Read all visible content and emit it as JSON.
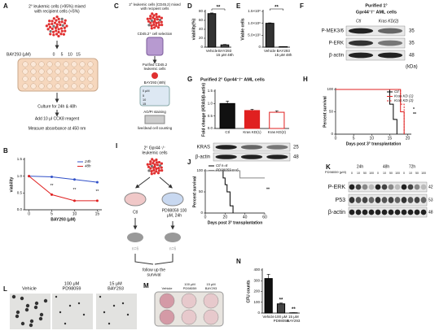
{
  "panels": {
    "A": {
      "label": "A",
      "lines": [
        "2° leukemic cells (>95%) mixed",
        "with recipient cells (<5%)"
      ],
      "dose_label": "BAY293 (μM)",
      "doses": [
        "0",
        "5",
        "10",
        "15"
      ],
      "steps": [
        "Culture for 24h & 48h",
        "Add 10 μl CCK8 reagent",
        "Measure absorbance at 450 nm"
      ]
    },
    "B": {
      "label": "B"
    },
    "C": {
      "label": "C",
      "lines": [
        "2° leukemic cells (CD45.2) mixed",
        "with recipient cells"
      ],
      "steps": [
        "CD45.2⁺ cell selection",
        "Purified CD45.2",
        "leukemic cells",
        "BAY293 (48h)",
        "AO/PI staining",
        "live/dead cell counting"
      ],
      "doses": [
        "0 μM",
        "5",
        "10",
        "15"
      ]
    },
    "D": {
      "label": "D"
    },
    "E": {
      "label": "E"
    },
    "F": {
      "label": "F",
      "title": [
        "Purified 1°",
        "Gpr44⁻/⁻ AML cells"
      ],
      "lanes": [
        "Ctl",
        "Kras KD(2)"
      ],
      "bands": [
        "P-MEK3/6",
        "P-ERK",
        "β-actin"
      ],
      "kda": [
        "35",
        "35",
        "48"
      ],
      "unit": "(kDa)"
    },
    "G": {
      "label": "G",
      "title": "Purified 2° Gpr44⁻/⁻ AML cells",
      "bands": [
        "KRAS",
        "β-actin"
      ],
      "kda": [
        "25",
        "48"
      ]
    },
    "H": {
      "label": "H"
    },
    "I": {
      "label": "I",
      "lines": [
        "2° Gpr44⁻/⁻",
        "leukemic cells"
      ],
      "arms": [
        "Ctl",
        "PD98059 100",
        "μM, 24h"
      ],
      "n": [
        "n=6",
        "n=6"
      ],
      "footer": [
        "follow up the",
        "survival"
      ]
    },
    "J": {
      "label": "J"
    },
    "K": {
      "label": "K",
      "times": [
        "24h",
        "48h",
        "72h"
      ],
      "dose_label": "PD98059 (μM)",
      "doses": [
        "0",
        "10",
        "50",
        "100",
        "0",
        "10",
        "50",
        "100",
        "0",
        "10",
        "50",
        "100"
      ],
      "bands": [
        "P-ERK",
        "P53",
        "β-actin"
      ],
      "kda": [
        "42",
        "53",
        "48"
      ]
    },
    "L": {
      "label": "L",
      "captions": [
        [
          "Vehicle"
        ],
        [
          "100 μM",
          "PD98059"
        ],
        [
          "15 μM",
          "BAY293"
        ]
      ]
    },
    "M": {
      "label": "M",
      "captions": [
        [
          "Vehicle"
        ],
        [
          "100 μM",
          "PD98059"
        ],
        [
          "15 μM",
          "BAY293"
        ]
      ]
    },
    "N": {
      "label": "N"
    }
  },
  "chart_data": [
    {
      "type": "line",
      "ylabel": "viability",
      "xlabel": "BAY293 (μM)",
      "x": [
        0,
        5,
        10,
        15
      ],
      "xlim": [
        -1,
        16
      ],
      "xticks": [
        0,
        5,
        10,
        15
      ],
      "ylim": [
        0,
        1.5
      ],
      "yticks": [
        {
          "value": 0,
          "label": "0.0"
        },
        0.5,
        {
          "value": 1,
          "label": "1.0"
        },
        1.5
      ],
      "legend": "upper right",
      "series": [
        {
          "name": "24h",
          "color": "#3050c8",
          "values": [
            1.0,
            0.98,
            0.9,
            0.82
          ]
        },
        {
          "name": "48h",
          "color": "#e02020",
          "values": [
            1.0,
            0.45,
            0.27,
            0.27
          ]
        }
      ],
      "annotations": [
        "**",
        "**",
        "**"
      ]
    },
    {
      "type": "bar",
      "ylabel": "viability(%)",
      "xlabel": "15 μM 48h",
      "categories": [
        "Vehicle",
        "BAY293"
      ],
      "values": [
        75,
        5
      ],
      "errors": [
        1.5,
        1
      ],
      "colors": [
        "#333333",
        "#555555"
      ],
      "edgecolors": [
        "#000000",
        "#000000"
      ],
      "ylim": [
        0,
        80
      ],
      "yticks": [
        0,
        20,
        40,
        60,
        80
      ],
      "annotations": [
        "**"
      ]
    },
    {
      "type": "bar",
      "ylabel": "Viable cells",
      "xlabel": "15 μM 48h",
      "categories": [
        "Vehicle",
        "BAY293"
      ],
      "values": [
        1000000,
        20000
      ],
      "errors": [
        20000,
        5000
      ],
      "colors": [
        "#333333",
        "#555555"
      ],
      "edgecolors": [
        "#000000",
        "#000000"
      ],
      "ylim": [
        0,
        1500000
      ],
      "yticks": [
        0,
        {
          "value": 500000,
          "label": "5.0×10⁵"
        },
        {
          "value": 1000000,
          "label": "1.0×10⁶"
        },
        {
          "value": 1500000,
          "label": "1.5×10⁶"
        }
      ],
      "annotations": [
        "**"
      ]
    },
    {
      "type": "bar",
      "ylabel": "Fold change (KRAS/β-actin)",
      "categories": [
        "Ctl",
        "Kras KD(1)",
        "Kras KD(2)"
      ],
      "values": [
        1.0,
        0.72,
        0.65
      ],
      "errors": [
        0.1,
        0.05,
        0.06
      ],
      "colors": [
        "#111111",
        "#e02020",
        "#ffffff"
      ],
      "edgecolors": [
        "#000000",
        "#e02020",
        "#e02020"
      ],
      "ylim": [
        0,
        1.5
      ],
      "yticks": [
        {
          "value": 0,
          "label": "0.0"
        },
        0.5,
        {
          "value": 1,
          "label": "1.0"
        },
        1.5
      ]
    },
    {
      "type": "survival",
      "ylabel": "Percent survival",
      "xlabel": "Days post 3° transplantation",
      "xlim": [
        0,
        21
      ],
      "xticks": [
        0,
        5,
        10,
        15,
        20
      ],
      "ylim": [
        0,
        100
      ],
      "yticks": [
        0,
        50,
        100
      ],
      "legend": "upper right",
      "series": [
        {
          "name": "Ctl",
          "color": "#000000",
          "dash": false,
          "x": [
            0,
            15,
            16,
            17
          ],
          "values": [
            100,
            67,
            33,
            0
          ]
        },
        {
          "name": "Kras KD (1)",
          "color": "#e02020",
          "dash": false,
          "x": [
            0,
            18,
            19
          ],
          "values": [
            100,
            50,
            0
          ]
        },
        {
          "name": "Kras KD (2)",
          "color": "#e02020",
          "dash": true,
          "x": [
            0,
            18,
            19
          ],
          "values": [
            100,
            67,
            0
          ]
        }
      ],
      "annotations": [
        "*",
        "**"
      ]
    },
    {
      "type": "survival",
      "ylabel": "Percent survival",
      "xlabel": "Days post 3° transplantation",
      "xlim": [
        0,
        60
      ],
      "xticks": [
        0,
        20,
        40,
        60
      ],
      "ylim": [
        0,
        100
      ],
      "yticks": [
        0,
        50,
        100
      ],
      "legend": "upper left",
      "series": [
        {
          "name": "Ctl n=6",
          "color": "#000000",
          "dash": false,
          "x": [
            0,
            18,
            20,
            22,
            25,
            28
          ],
          "values": [
            100,
            83,
            67,
            50,
            17,
            0
          ]
        },
        {
          "name": "PD98059 n=6",
          "color": "#888888",
          "dash": false,
          "x": [
            0,
            35,
            60
          ],
          "values": [
            100,
            83,
            83
          ]
        }
      ],
      "annotations": [
        "**"
      ]
    },
    {
      "type": "bar",
      "ylabel": "CFU counts",
      "categories": [
        "Vehicle",
        "100 μM PD98059",
        "15 μM BAY293"
      ],
      "values": [
        320,
        85,
        2
      ],
      "errors": [
        40,
        8,
        1
      ],
      "colors": [
        "#111111",
        "#444444",
        "#444444"
      ],
      "edgecolors": [
        "#000000",
        "#000000",
        "#000000"
      ],
      "ylim": [
        0,
        400
      ],
      "yticks": [
        0,
        100,
        200,
        300,
        400
      ],
      "annotations": [
        "**",
        "**"
      ]
    }
  ]
}
